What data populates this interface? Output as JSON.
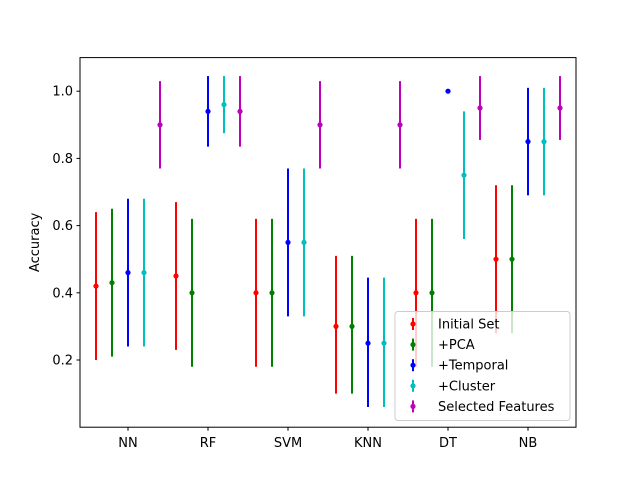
{
  "chart_data": {
    "type": "errorbar",
    "title": "",
    "xlabel": "",
    "ylabel": "Accuracy",
    "categories": [
      "NN",
      "RF",
      "SVM",
      "KNN",
      "DT",
      "NB"
    ],
    "ylim": [
      0.0,
      1.1
    ],
    "yticks": [
      0.2,
      0.4,
      0.6,
      0.8,
      1.0
    ],
    "ytick_labels": [
      "0.2",
      "0.4",
      "0.6",
      "0.8",
      "1.0"
    ],
    "grid": false,
    "legend_position": "lower-right",
    "series": [
      {
        "name": "Initial Set",
        "color": "#ff0000",
        "values": [
          0.42,
          0.45,
          0.4,
          0.3,
          0.4,
          0.5
        ],
        "lower": [
          0.2,
          0.23,
          0.18,
          0.1,
          0.18,
          0.28
        ],
        "upper": [
          0.64,
          0.67,
          0.62,
          0.51,
          0.62,
          0.72
        ]
      },
      {
        "name": "+PCA",
        "color": "#008000",
        "values": [
          0.43,
          0.4,
          0.4,
          0.3,
          0.4,
          0.5
        ],
        "lower": [
          0.21,
          0.18,
          0.18,
          0.1,
          0.18,
          0.28
        ],
        "upper": [
          0.65,
          0.62,
          0.62,
          0.51,
          0.62,
          0.72
        ]
      },
      {
        "name": "+Temporal",
        "color": "#0000ff",
        "values": [
          0.46,
          0.94,
          0.55,
          0.25,
          1.0,
          0.85
        ],
        "lower": [
          0.24,
          0.835,
          0.33,
          0.06,
          1.0,
          0.69
        ],
        "upper": [
          0.68,
          1.045,
          0.77,
          0.445,
          1.0,
          1.01
        ]
      },
      {
        "name": "+Cluster",
        "color": "#00bfbf",
        "values": [
          0.46,
          0.96,
          0.55,
          0.25,
          0.75,
          0.85
        ],
        "lower": [
          0.24,
          0.875,
          0.33,
          0.06,
          0.56,
          0.69
        ],
        "upper": [
          0.68,
          1.045,
          0.77,
          0.445,
          0.94,
          1.01
        ]
      },
      {
        "name": "Selected Features",
        "color": "#bf00bf",
        "values": [
          0.9,
          0.94,
          0.9,
          0.9,
          0.95,
          0.95
        ],
        "lower": [
          0.77,
          0.835,
          0.77,
          0.77,
          0.855,
          0.855
        ],
        "upper": [
          1.03,
          1.045,
          1.03,
          1.03,
          1.045,
          1.045
        ]
      }
    ]
  }
}
